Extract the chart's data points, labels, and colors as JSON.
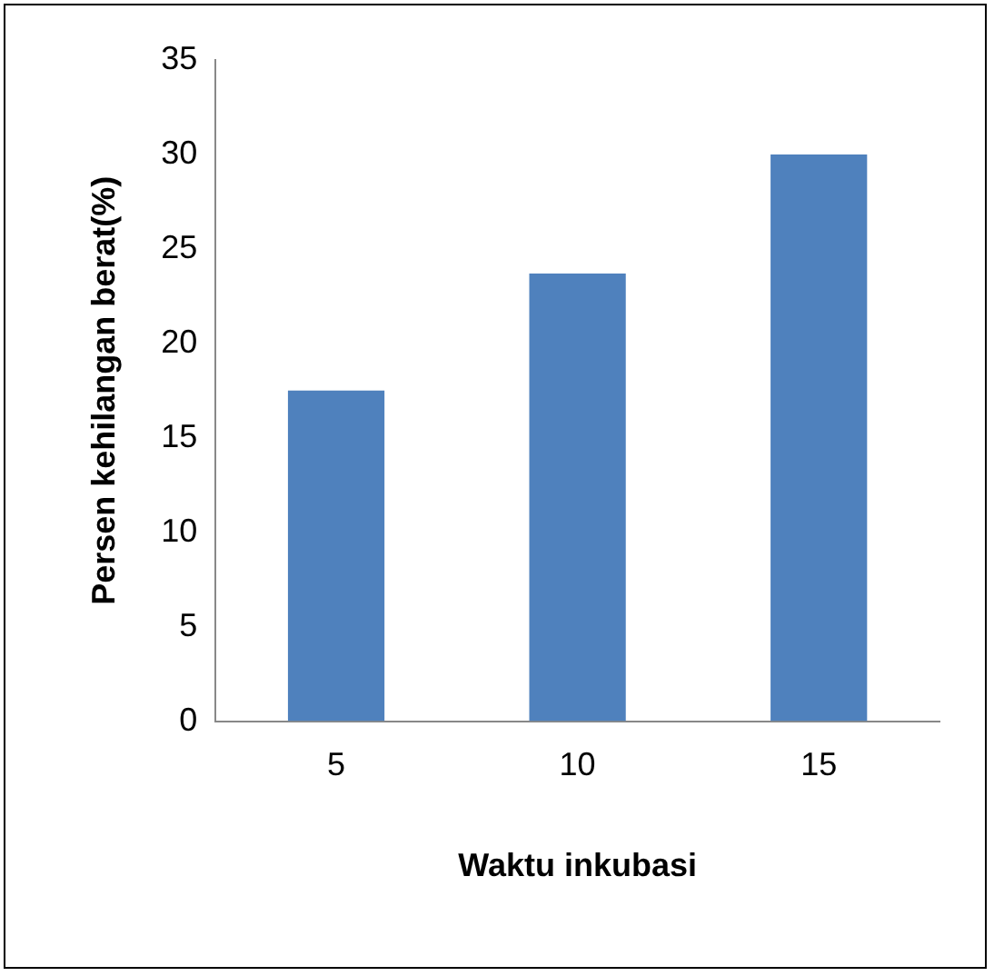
{
  "chart_data": {
    "type": "bar",
    "xlabel": "Waktu inkubasi",
    "ylabel": "Persen kehilangan berat(%)",
    "categories": [
      "5",
      "10",
      "15"
    ],
    "values": [
      17.5,
      23.7,
      30
    ],
    "color": "#4f81bd",
    "ylim": [
      0,
      35
    ],
    "yticks": [
      0,
      5,
      10,
      15,
      20,
      25,
      30,
      35
    ],
    "grid": false,
    "legend": false
  }
}
